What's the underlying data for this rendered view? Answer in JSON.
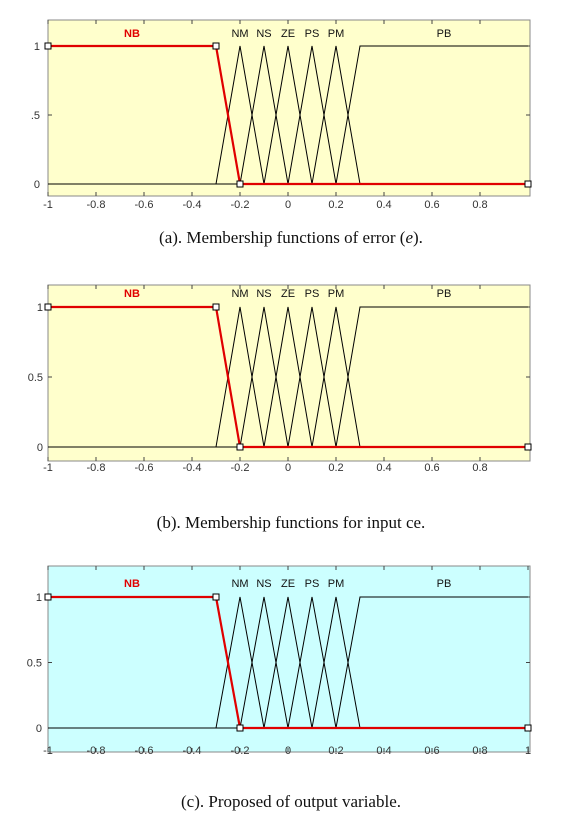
{
  "chart_data": [
    {
      "type": "line",
      "panel_id": "a",
      "caption_parts": [
        "(a). Membership functions of error (",
        "e",
        ")."
      ],
      "background": "#ffffcc",
      "xlim": [
        -1,
        1
      ],
      "ylim": [
        0,
        1
      ],
      "x_ticks": [
        "-1",
        "-0.8",
        "-0.6",
        "-0.4",
        "-0.2",
        "0",
        "0.2",
        "0.4",
        "0.6",
        "0.8"
      ],
      "y_ticks": [
        ".5",
        "1",
        "0"
      ],
      "highlight_color": "#e00000",
      "series": [
        {
          "name": "NB",
          "x": [
            -1,
            -0.3,
            -0.2,
            1
          ],
          "y": [
            1,
            1,
            0,
            0
          ],
          "highlighted": true
        },
        {
          "name": "NM",
          "x": [
            -1,
            -0.3,
            -0.2,
            -0.1,
            1
          ],
          "y": [
            0,
            0,
            1,
            0,
            0
          ]
        },
        {
          "name": "NS",
          "x": [
            -1,
            -0.2,
            -0.1,
            0,
            1
          ],
          "y": [
            0,
            0,
            1,
            0,
            0
          ]
        },
        {
          "name": "ZE",
          "x": [
            -1,
            -0.1,
            0,
            0.1,
            1
          ],
          "y": [
            0,
            0,
            1,
            0,
            0
          ]
        },
        {
          "name": "PS",
          "x": [
            -1,
            0,
            0.1,
            0.2,
            1
          ],
          "y": [
            0,
            0,
            1,
            0,
            0
          ]
        },
        {
          "name": "PM",
          "x": [
            -1,
            0.1,
            0.2,
            0.3,
            1
          ],
          "y": [
            0,
            0,
            1,
            0,
            0
          ]
        },
        {
          "name": "PB",
          "x": [
            -1,
            0.2,
            0.3,
            1
          ],
          "y": [
            0,
            0,
            1,
            1
          ]
        }
      ]
    },
    {
      "type": "line",
      "panel_id": "b",
      "caption_parts": [
        "(b). Membership functions for input ce."
      ],
      "background": "#ffffcc",
      "xlim": [
        -1,
        1
      ],
      "ylim": [
        0,
        1
      ],
      "x_ticks": [
        "-1",
        "-0.8",
        "-0.6",
        "-0.4",
        "-0.2",
        "0",
        "0.2",
        "0.4",
        "0.6",
        "0.8"
      ],
      "y_ticks": [
        "0.5",
        "1",
        "0"
      ],
      "highlight_color": "#e00000",
      "series": [
        {
          "name": "NB",
          "x": [
            -1,
            -0.3,
            -0.2,
            1
          ],
          "y": [
            1,
            1,
            0,
            0
          ],
          "highlighted": true
        },
        {
          "name": "NM",
          "x": [
            -1,
            -0.3,
            -0.2,
            -0.1,
            1
          ],
          "y": [
            0,
            0,
            1,
            0,
            0
          ]
        },
        {
          "name": "NS",
          "x": [
            -1,
            -0.2,
            -0.1,
            0,
            1
          ],
          "y": [
            0,
            0,
            1,
            0,
            0
          ]
        },
        {
          "name": "ZE",
          "x": [
            -1,
            -0.1,
            0,
            0.1,
            1
          ],
          "y": [
            0,
            0,
            1,
            0,
            0
          ]
        },
        {
          "name": "PS",
          "x": [
            -1,
            0,
            0.1,
            0.2,
            1
          ],
          "y": [
            0,
            0,
            1,
            0,
            0
          ]
        },
        {
          "name": "PM",
          "x": [
            -1,
            0.1,
            0.2,
            0.3,
            1
          ],
          "y": [
            0,
            0,
            1,
            0,
            0
          ]
        },
        {
          "name": "PB",
          "x": [
            -1,
            0.2,
            0.3,
            1
          ],
          "y": [
            0,
            0,
            1,
            1
          ]
        }
      ]
    },
    {
      "type": "line",
      "panel_id": "c",
      "caption_parts": [
        "(c). Proposed of output variable."
      ],
      "background": "#ccffff",
      "xlim": [
        -1,
        1
      ],
      "ylim": [
        0,
        1
      ],
      "x_ticks": [
        "-1",
        "-0.8",
        "-0.6",
        "-0.4",
        "-0.2",
        "0",
        "0.2",
        "0.4",
        "0.6",
        "0.8",
        "1"
      ],
      "y_ticks": [
        "0.5",
        "1",
        "0"
      ],
      "highlight_color": "#e00000",
      "series": [
        {
          "name": "NB",
          "x": [
            -1,
            -0.3,
            -0.2,
            1
          ],
          "y": [
            1,
            1,
            0,
            0
          ],
          "highlighted": true
        },
        {
          "name": "NM",
          "x": [
            -1,
            -0.3,
            -0.2,
            -0.1,
            1
          ],
          "y": [
            0,
            0,
            1,
            0,
            0
          ]
        },
        {
          "name": "NS",
          "x": [
            -1,
            -0.2,
            -0.1,
            0,
            1
          ],
          "y": [
            0,
            0,
            1,
            0,
            0
          ]
        },
        {
          "name": "ZE",
          "x": [
            -1,
            -0.1,
            0,
            0.1,
            1
          ],
          "y": [
            0,
            0,
            1,
            0,
            0
          ]
        },
        {
          "name": "PS",
          "x": [
            -1,
            0,
            0.1,
            0.2,
            1
          ],
          "y": [
            0,
            0,
            1,
            0,
            0
          ]
        },
        {
          "name": "PM",
          "x": [
            -1,
            0.1,
            0.2,
            0.3,
            1
          ],
          "y": [
            0,
            0,
            1,
            0,
            0
          ]
        },
        {
          "name": "PB",
          "x": [
            -1,
            0.2,
            0.3,
            1
          ],
          "y": [
            0,
            0,
            1,
            1
          ]
        }
      ]
    }
  ]
}
